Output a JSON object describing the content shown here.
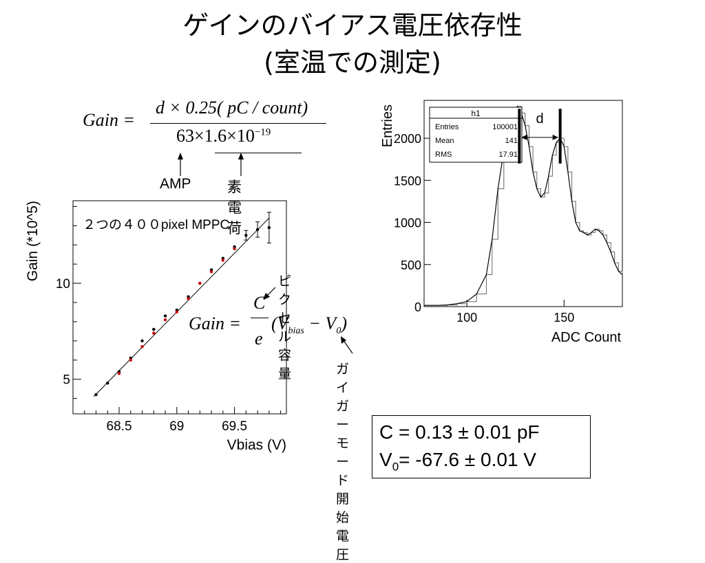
{
  "slide": {
    "title_line1": "ゲインのバイアス電圧依存性",
    "title_line2": "(室温での測定)"
  },
  "formula_top": {
    "lhs": "Gain =",
    "numerator": "d × 0.25( pC / count)",
    "denom_a": "63×1.6×10",
    "denom_exp": "−19",
    "label_amp": "AMP",
    "label_charge": "素電荷"
  },
  "formula_mid": {
    "lhs": "Gain =",
    "frac_num": "C",
    "frac_den": "e",
    "paren_open": "(V",
    "sub_bias": "bias",
    "minus_v": " − V",
    "sub_0": "0",
    "paren_close": ")",
    "label_capacitance": "ピクセル容量",
    "label_breakdown": "ガイガーモード開始電圧"
  },
  "result": {
    "line1": "C = 0.13 ± 0.01 pF",
    "line2_v": "V",
    "line2_sub": "0",
    "line2_rest": "= -67.6 ± 0.01 V"
  },
  "chart_data": [
    {
      "type": "scatter",
      "title": "",
      "annotation": "２つの４００pixel MPPC",
      "xlabel": "Vbias (V)",
      "ylabel": "Gain (*10^5)",
      "xlim": [
        68.1,
        69.95
      ],
      "ylim": [
        3.2,
        14.3
      ],
      "xticks": [
        68.5,
        69,
        69.5
      ],
      "xtick_labels": [
        "68.5",
        "69",
        "69.5"
      ],
      "yticks": [
        5,
        10
      ],
      "ytick_labels": [
        "5",
        "10"
      ],
      "grid": false,
      "series": [
        {
          "color": "#000000",
          "x": [
            68.3,
            68.4,
            68.5,
            68.6,
            68.7,
            68.8,
            68.9,
            69.0,
            69.1,
            69.2,
            69.3,
            69.4,
            69.5,
            69.6,
            69.7,
            69.8
          ],
          "y": [
            4.2,
            4.8,
            5.4,
            6.1,
            7.0,
            7.6,
            8.3,
            8.6,
            9.3,
            10.0,
            10.7,
            11.3,
            11.9,
            12.5,
            12.8,
            12.9
          ],
          "yerr": [
            0.05,
            0.05,
            0.05,
            0.05,
            0.05,
            0.05,
            0.05,
            0.05,
            0.1,
            0.1,
            0.1,
            0.1,
            0.15,
            0.25,
            0.4,
            0.8
          ]
        },
        {
          "color": "#cc0000",
          "x": [
            68.5,
            68.6,
            68.7,
            68.8,
            68.9,
            69.0,
            69.1,
            69.2,
            69.3,
            69.4,
            69.5
          ],
          "y": [
            5.3,
            6.0,
            6.7,
            7.4,
            8.1,
            8.5,
            9.2,
            10.0,
            10.6,
            11.2,
            11.8
          ]
        }
      ],
      "fit_line": {
        "x": [
          68.28,
          69.8
        ],
        "y": [
          4.1,
          13.4
        ]
      }
    },
    {
      "type": "line",
      "title": "",
      "xlabel": "ADC Count",
      "ylabel": "Entries",
      "xlim": [
        78,
        180
      ],
      "ylim": [
        0,
        2450
      ],
      "xticks": [
        100,
        150
      ],
      "xtick_labels": [
        "100",
        "150"
      ],
      "yticks": [
        0,
        500,
        1000,
        1500,
        2000
      ],
      "ytick_labels": [
        "0",
        "500",
        "1000",
        "1500",
        "2000"
      ],
      "grid": false,
      "stats_box": {
        "name": "h1",
        "rows": [
          {
            "label": "Entries",
            "value": "100001"
          },
          {
            "label": "Mean",
            "value": "141"
          },
          {
            "label": "RMS",
            "value": "17.91"
          }
        ]
      },
      "marker_label": "d",
      "markers_x": [
        127,
        148
      ],
      "x": [
        78,
        85,
        90,
        95,
        100,
        105,
        110,
        113,
        116,
        119,
        122,
        124,
        126,
        128,
        130,
        132,
        134,
        136,
        138,
        140,
        142,
        144,
        146,
        148,
        150,
        152,
        154,
        156,
        158,
        160,
        162,
        164,
        166,
        168,
        170,
        172,
        174,
        176,
        178,
        180
      ],
      "y": [
        15,
        15,
        20,
        35,
        60,
        150,
        380,
        800,
        1400,
        1850,
        2100,
        2300,
        2380,
        2300,
        2150,
        1900,
        1600,
        1400,
        1300,
        1350,
        1550,
        1800,
        1950,
        2000,
        1900,
        1600,
        1250,
        1000,
        900,
        880,
        850,
        880,
        920,
        900,
        850,
        760,
        650,
        520,
        420,
        380
      ]
    }
  ]
}
